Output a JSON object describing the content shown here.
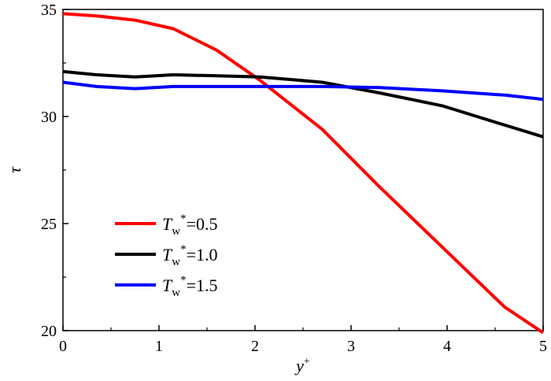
{
  "chart_data": {
    "type": "line",
    "xlabel_main": "y",
    "xlabel_sup": "+",
    "ylabel": "τ",
    "xlim": [
      0,
      5
    ],
    "ylim": [
      20,
      35
    ],
    "xticks": [
      0,
      1,
      2,
      3,
      4,
      5
    ],
    "yticks": [
      20,
      25,
      30,
      35
    ],
    "grid": false,
    "legend_position": "bottom-left",
    "series": [
      {
        "name": "Tw*=0.5",
        "legend_base": "T",
        "legend_sub": "w",
        "legend_sup": "*",
        "legend_value": "=0.5",
        "color": "#ff0000",
        "x": [
          0,
          0.35,
          0.75,
          1.15,
          1.6,
          2.05,
          2.7,
          3.3,
          3.95,
          4.6,
          5.0
        ],
        "y": [
          34.8,
          34.7,
          34.5,
          34.1,
          33.1,
          31.7,
          29.4,
          26.7,
          23.9,
          21.1,
          19.9
        ]
      },
      {
        "name": "Tw*=1.0",
        "legend_base": "T",
        "legend_sub": "w",
        "legend_sup": "*",
        "legend_value": "=1.0",
        "color": "#000000",
        "x": [
          0,
          0.35,
          0.75,
          1.15,
          1.6,
          2.05,
          2.7,
          3.3,
          3.95,
          4.6,
          5.0
        ],
        "y": [
          32.1,
          31.95,
          31.85,
          31.95,
          31.9,
          31.85,
          31.6,
          31.1,
          30.5,
          29.6,
          29.05
        ]
      },
      {
        "name": "Tw*=1.5",
        "legend_base": "T",
        "legend_sub": "w",
        "legend_sup": "*",
        "legend_value": "=1.5",
        "color": "#0000ff",
        "x": [
          0,
          0.35,
          0.75,
          1.15,
          1.6,
          2.05,
          2.7,
          3.3,
          3.95,
          4.6,
          5.0
        ],
        "y": [
          31.6,
          31.4,
          31.3,
          31.4,
          31.4,
          31.4,
          31.4,
          31.35,
          31.2,
          31.0,
          30.8
        ]
      }
    ]
  }
}
